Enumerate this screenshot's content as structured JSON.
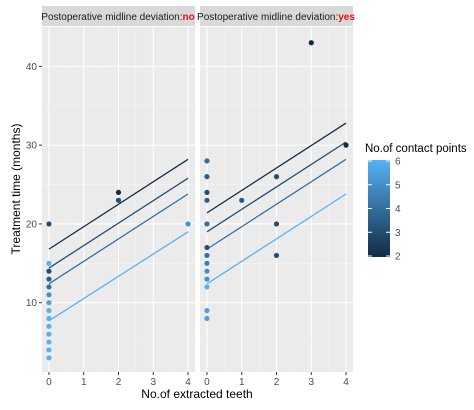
{
  "chart_data": {
    "type": "scatter",
    "xlabel": "No.of extracted teeth",
    "ylabel": "Treatment time (months)",
    "xlim": [
      -0.2,
      4.2
    ],
    "ylim": [
      1.2,
      45
    ],
    "x_ticks": [
      0,
      1,
      2,
      3,
      4
    ],
    "y_ticks": [
      10,
      20,
      30,
      40
    ],
    "grid": true,
    "facets": [
      {
        "strip_prefix": "Postoperative midline deviation:",
        "strip_value": "no",
        "points": [
          {
            "x": 0,
            "y": 3,
            "c": 6
          },
          {
            "x": 0,
            "y": 4,
            "c": 6
          },
          {
            "x": 0,
            "y": 5,
            "c": 6
          },
          {
            "x": 0,
            "y": 6,
            "c": 6
          },
          {
            "x": 0,
            "y": 7,
            "c": 6
          },
          {
            "x": 0,
            "y": 8,
            "c": 6
          },
          {
            "x": 0,
            "y": 9,
            "c": 6
          },
          {
            "x": 0,
            "y": 10,
            "c": 5.5
          },
          {
            "x": 0,
            "y": 11,
            "c": 5
          },
          {
            "x": 0,
            "y": 12,
            "c": 4
          },
          {
            "x": 0,
            "y": 13,
            "c": 3.5
          },
          {
            "x": 0,
            "y": 14,
            "c": 3
          },
          {
            "x": 0,
            "y": 15,
            "c": 6
          },
          {
            "x": 0,
            "y": 20,
            "c": 3
          },
          {
            "x": 2,
            "y": 23,
            "c": 3
          },
          {
            "x": 2,
            "y": 24,
            "c": 2
          },
          {
            "x": 4,
            "y": 20,
            "c": 5
          }
        ],
        "lines": [
          {
            "c": 2,
            "y0": 16.8,
            "y4": 28.2
          },
          {
            "c": 3,
            "y0": 14.4,
            "y4": 25.8
          },
          {
            "c": 4,
            "y0": 12.4,
            "y4": 23.8
          },
          {
            "c": 6,
            "y0": 7.7,
            "y4": 19.0
          }
        ]
      },
      {
        "strip_prefix": "Postoperative midline deviation:",
        "strip_value": "yes",
        "points": [
          {
            "x": 0,
            "y": 8,
            "c": 5.5
          },
          {
            "x": 0,
            "y": 9,
            "c": 5.5
          },
          {
            "x": 0,
            "y": 12,
            "c": 6
          },
          {
            "x": 0,
            "y": 13,
            "c": 5
          },
          {
            "x": 0,
            "y": 14,
            "c": 5
          },
          {
            "x": 0,
            "y": 15,
            "c": 4.5
          },
          {
            "x": 0,
            "y": 16,
            "c": 4
          },
          {
            "x": 0,
            "y": 17,
            "c": 3
          },
          {
            "x": 0,
            "y": 20,
            "c": 4
          },
          {
            "x": 0,
            "y": 23,
            "c": 3.5
          },
          {
            "x": 0,
            "y": 24,
            "c": 3
          },
          {
            "x": 0,
            "y": 26,
            "c": 3.5
          },
          {
            "x": 0,
            "y": 28,
            "c": 4
          },
          {
            "x": 1,
            "y": 23,
            "c": 3.5
          },
          {
            "x": 2,
            "y": 26,
            "c": 3
          },
          {
            "x": 2,
            "y": 20,
            "c": 3
          },
          {
            "x": 2,
            "y": 16,
            "c": 3
          },
          {
            "x": 3,
            "y": 43,
            "c": 2
          },
          {
            "x": 4,
            "y": 30,
            "c": 2
          }
        ],
        "lines": [
          {
            "c": 2,
            "y0": 21.4,
            "y4": 32.8
          },
          {
            "c": 3,
            "y0": 19.0,
            "y4": 30.4
          },
          {
            "c": 4,
            "y0": 16.8,
            "y4": 28.2
          },
          {
            "c": 6,
            "y0": 12.4,
            "y4": 23.8
          }
        ]
      }
    ],
    "legend": {
      "title": "No.of contact points",
      "min": 2,
      "max": 6,
      "ticks": [
        2,
        3,
        4,
        5,
        6
      ],
      "color_low": "#132b43",
      "color_high": "#56b1f7",
      "placement": "right"
    },
    "colors": {
      "panel_background": "#ebebeb",
      "strip_background": "#d9d9d9",
      "grid_major": "#ffffff",
      "highlight": "#e8101a"
    }
  }
}
